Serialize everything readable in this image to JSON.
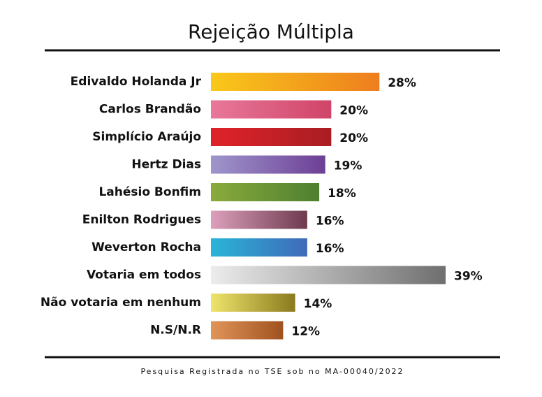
{
  "chart_data": {
    "type": "bar",
    "orientation": "horizontal",
    "title": "Rejeição Múltipla",
    "categories": [
      "Edivaldo Holanda Jr",
      "Carlos Brandão",
      "Simplício Araújo",
      "Hertz Dias",
      "Lahésio Bonfim",
      "Enilton Rodrigues",
      "Weverton Rocha",
      "Votaria em todos",
      "Não votaria em nenhum",
      "N.S/N.R"
    ],
    "values": [
      28,
      20,
      20,
      19,
      18,
      16,
      16,
      39,
      14,
      12
    ],
    "value_labels": [
      "28%",
      "20%",
      "20%",
      "19%",
      "18%",
      "16%",
      "16%",
      "39%",
      "14%",
      "12%"
    ],
    "colors": [
      [
        "#f9c81a",
        "#ee7e1e"
      ],
      [
        "#e8789a",
        "#d04468"
      ],
      [
        "#e0222a",
        "#a81e22"
      ],
      [
        "#9f96cc",
        "#6d3f96"
      ],
      [
        "#8aab3c",
        "#4e7f30"
      ],
      [
        "#dca0bc",
        "#6e3a4e"
      ],
      [
        "#2ab4d8",
        "#3f6ab8"
      ],
      [
        "#ececec",
        "#6f6f6f"
      ],
      [
        "#efe46c",
        "#8a7a1e"
      ],
      [
        "#e0955a",
        "#a0521e"
      ]
    ],
    "footnote": "Pesquisa Registrada no TSE sob no MA-00040/2022"
  }
}
